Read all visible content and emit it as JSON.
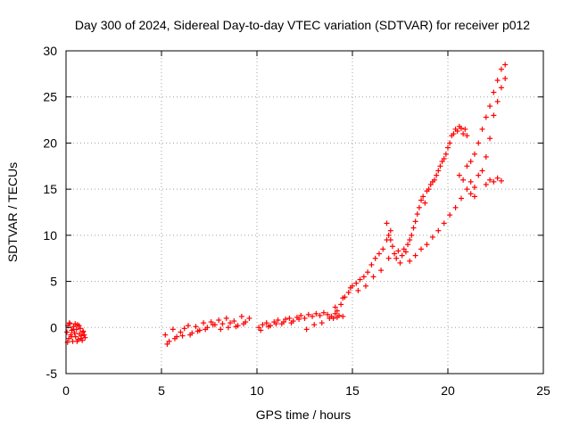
{
  "colors": {
    "background": "#ffffff",
    "plot_border": "#000000",
    "grid": "#a0a0a0",
    "series": "#ff0000"
  },
  "chart_data": {
    "type": "scatter",
    "title": "Day 300 of 2024, Sidereal Day-to-day VTEC variation (SDTVAR) for receiver p012",
    "xlabel": "GPS time / hours",
    "ylabel": "SDTVAR / TECUs",
    "xlim": [
      0,
      25
    ],
    "ylim": [
      -5,
      30
    ],
    "xticks": [
      0,
      5,
      10,
      15,
      20,
      25
    ],
    "yticks": [
      -5,
      0,
      5,
      10,
      15,
      20,
      25,
      30
    ],
    "grid": true,
    "marker": "+",
    "series": [
      {
        "name": "SDTVAR",
        "x": [
          0.05,
          0.1,
          0.15,
          0.2,
          0.25,
          0.3,
          0.35,
          0.4,
          0.45,
          0.5,
          0.55,
          0.6,
          0.65,
          0.7,
          0.75,
          0.8,
          0.85,
          0.9,
          0.95,
          1.0,
          0.08,
          0.18,
          0.28,
          0.38,
          0.48,
          0.58,
          0.68,
          0.78,
          0.88,
          5.2,
          5.4,
          5.6,
          5.8,
          6.0,
          6.2,
          6.4,
          6.6,
          6.8,
          7.0,
          7.2,
          7.4,
          7.6,
          7.8,
          8.0,
          8.2,
          8.4,
          8.6,
          8.8,
          9.0,
          9.2,
          9.4,
          9.6,
          5.3,
          5.7,
          6.1,
          6.5,
          6.9,
          7.3,
          7.7,
          8.1,
          8.5,
          8.9,
          9.3,
          10.1,
          10.3,
          10.5,
          10.7,
          10.9,
          11.1,
          11.3,
          11.5,
          11.7,
          11.9,
          12.1,
          12.3,
          12.5,
          12.7,
          12.9,
          13.1,
          13.3,
          13.5,
          13.7,
          13.9,
          14.1,
          14.3,
          14.5,
          10.2,
          10.6,
          11.0,
          11.4,
          11.8,
          12.2,
          12.6,
          13.0,
          13.4,
          13.8,
          14.2,
          14.0,
          14.2,
          14.4,
          14.6,
          14.8,
          15.0,
          15.2,
          15.4,
          15.6,
          15.8,
          16.0,
          16.2,
          16.4,
          16.6,
          16.8,
          17.0,
          14.1,
          14.5,
          14.9,
          15.3,
          15.7,
          16.1,
          16.5,
          16.9,
          16.8,
          16.9,
          17.0,
          17.1,
          17.2,
          17.3,
          17.4,
          17.5,
          17.6,
          17.7,
          17.8,
          17.9,
          18.0,
          18.1,
          18.2,
          18.3,
          18.4,
          18.5,
          18.6,
          18.7,
          18.8,
          18.9,
          19.0,
          19.1,
          19.2,
          19.3,
          19.4,
          19.5,
          19.6,
          19.7,
          19.8,
          19.9,
          20.0,
          20.1,
          20.2,
          20.3,
          20.4,
          20.5,
          20.6,
          20.7,
          20.8,
          20.9,
          21.0,
          18.0,
          18.3,
          18.6,
          18.9,
          19.2,
          19.5,
          19.8,
          20.1,
          20.4,
          20.7,
          21.0,
          21.2,
          21.4,
          20.6,
          20.8,
          21.0,
          21.2,
          21.4,
          21.6,
          21.8,
          22.0,
          22.2,
          22.4,
          22.6,
          22.8,
          23.0,
          21.2,
          21.4,
          21.6,
          21.8,
          22.0,
          22.2,
          22.4,
          22.6,
          22.8,
          23.0,
          22.0,
          22.2,
          22.4,
          22.6,
          22.8
        ],
        "y": [
          -0.5,
          0.2,
          -1.2,
          0.4,
          -0.8,
          -0.3,
          -1.5,
          0.1,
          -0.6,
          -1.0,
          -0.2,
          0.3,
          -1.3,
          -0.7,
          -0.1,
          -0.9,
          -1.4,
          -0.4,
          -0.8,
          -1.1,
          -1.6,
          0.5,
          -1.0,
          -0.2,
          0.4,
          -1.5,
          0.2,
          -1.2,
          -0.5,
          -0.8,
          -1.5,
          -0.2,
          -1.0,
          -0.5,
          -0.1,
          0.2,
          -0.6,
          0.1,
          -0.3,
          0.5,
          0.0,
          0.6,
          0.3,
          0.8,
          0.4,
          1.0,
          0.5,
          0.7,
          0.2,
          1.2,
          0.6,
          1.0,
          -1.8,
          -1.2,
          -0.9,
          -0.8,
          -0.4,
          -0.2,
          0.3,
          -0.2,
          0.0,
          0.1,
          0.4,
          0.0,
          0.3,
          0.5,
          0.2,
          0.6,
          0.8,
          0.4,
          0.9,
          1.0,
          0.7,
          1.1,
          1.3,
          1.0,
          1.4,
          1.2,
          1.5,
          1.3,
          1.6,
          1.4,
          1.2,
          1.5,
          1.3,
          1.2,
          -0.3,
          0.1,
          0.4,
          0.6,
          0.5,
          0.9,
          -0.2,
          0.3,
          0.5,
          1.0,
          1.1,
          1.0,
          1.8,
          2.5,
          3.3,
          3.8,
          4.5,
          4.8,
          5.2,
          5.5,
          6.0,
          6.8,
          7.5,
          8.0,
          8.5,
          9.5,
          10.5,
          2.2,
          3.2,
          4.3,
          4.0,
          4.5,
          5.5,
          6.2,
          7.5,
          11.3,
          10.0,
          9.5,
          8.8,
          8.0,
          7.5,
          8.3,
          7.0,
          7.8,
          8.5,
          8.2,
          9.0,
          9.5,
          10.0,
          10.8,
          11.5,
          12.3,
          13.0,
          13.8,
          14.2,
          13.5,
          14.8,
          15.0,
          15.5,
          15.8,
          16.0,
          16.5,
          17.0,
          17.5,
          18.0,
          18.3,
          18.8,
          19.5,
          20.0,
          20.8,
          21.0,
          21.5,
          21.3,
          21.8,
          21.6,
          21.0,
          21.5,
          20.8,
          7.2,
          7.8,
          8.5,
          9.0,
          9.8,
          10.5,
          11.3,
          12.2,
          13.0,
          14.0,
          15.0,
          14.5,
          14.2,
          16.5,
          16.0,
          17.5,
          18.0,
          18.8,
          20.0,
          21.5,
          22.8,
          24.0,
          25.5,
          26.8,
          28.0,
          28.5,
          15.8,
          15.2,
          16.5,
          17.0,
          18.5,
          20.5,
          23.0,
          24.5,
          26.0,
          27.0,
          15.5,
          16.0,
          15.8,
          16.2,
          15.9
        ]
      }
    ]
  }
}
